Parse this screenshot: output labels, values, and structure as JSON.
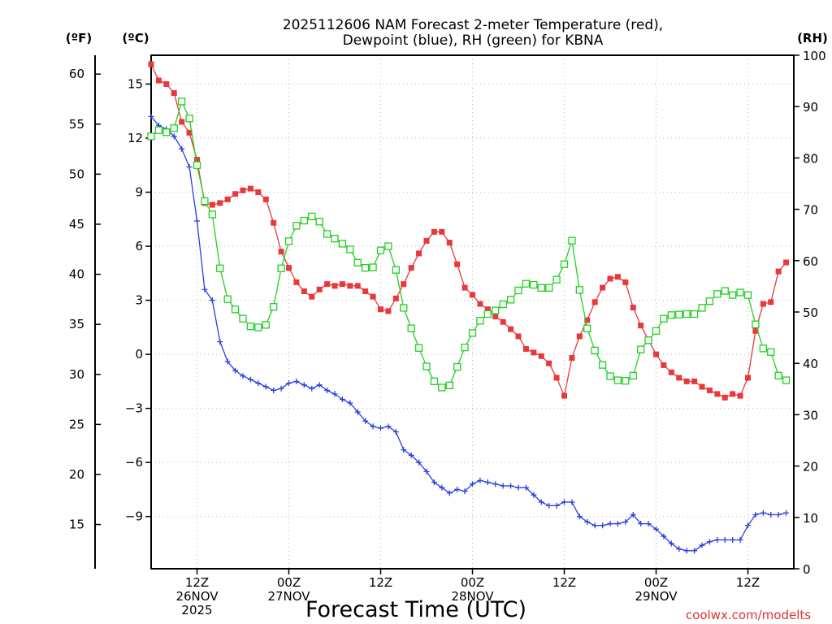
{
  "title": {
    "line1": "2025112606 NAM Forecast 2-meter Temperature (red),",
    "line2": "Dewpoint (blue), RH (green) for KBNA"
  },
  "units": {
    "fahrenheit": "(ºF)",
    "celsius": "(ºC)",
    "rh": "(RH)"
  },
  "x_axis": {
    "title": "Forecast Time (UTC)",
    "labels": [
      {
        "h": 6,
        "lines": [
          "12Z",
          "26NOV",
          "2025"
        ]
      },
      {
        "h": 18,
        "lines": [
          "00Z",
          "27NOV"
        ]
      },
      {
        "h": 30,
        "lines": [
          "12Z"
        ]
      },
      {
        "h": 42,
        "lines": [
          "00Z",
          "28NOV"
        ]
      },
      {
        "h": 54,
        "lines": [
          "12Z"
        ]
      },
      {
        "h": 66,
        "lines": [
          "00Z",
          "29NOV"
        ]
      },
      {
        "h": 78,
        "lines": [
          "12Z"
        ]
      }
    ]
  },
  "watermark": "coolwx.com/modelts",
  "colors": {
    "temperature": "#e8383a",
    "dewpoint": "#2a3fe0",
    "rh": "#20d020",
    "grid": "#b8b8b8"
  },
  "chart_data": {
    "type": "line",
    "x_unit": "hours from 2025-11-26 06Z",
    "x_range": [
      0,
      84
    ],
    "ylim_celsius": [
      -11.9,
      16.6
    ],
    "ylim_rh": [
      0,
      100
    ],
    "celsius_ticks": [
      "15",
      "12",
      "9",
      "6",
      "3",
      "0",
      "−3",
      "−6",
      "−9"
    ],
    "celsius_tick_values": [
      15,
      12,
      9,
      6,
      3,
      0,
      -3,
      -6,
      -9
    ],
    "fahrenheit_ticks": [
      "60",
      "55",
      "50",
      "45",
      "40",
      "35",
      "30",
      "25",
      "20",
      "15"
    ],
    "fahrenheit_tick_values": [
      60,
      55,
      50,
      45,
      40,
      35,
      30,
      25,
      20,
      15
    ],
    "rh_ticks": [
      "100",
      "90",
      "80",
      "70",
      "60",
      "50",
      "40",
      "30",
      "20",
      "10",
      "0"
    ],
    "rh_tick_values": [
      100,
      90,
      80,
      70,
      60,
      50,
      40,
      30,
      20,
      10,
      0
    ],
    "series": [
      {
        "name": "Temperature",
        "axis": "celsius",
        "marker": "filled-square",
        "points": [
          [
            0,
            16.1
          ],
          [
            1,
            15.2
          ],
          [
            2,
            15.0
          ],
          [
            3,
            14.5
          ],
          [
            4,
            12.9
          ],
          [
            5,
            12.3
          ],
          [
            6,
            10.8
          ],
          [
            7,
            8.4
          ],
          [
            8,
            8.3
          ],
          [
            9,
            8.4
          ],
          [
            10,
            8.6
          ],
          [
            11,
            8.9
          ],
          [
            12,
            9.1
          ],
          [
            13,
            9.2
          ],
          [
            14,
            9.0
          ],
          [
            15,
            8.6
          ],
          [
            16,
            7.3
          ],
          [
            17,
            5.7
          ],
          [
            18,
            4.8
          ],
          [
            19,
            4.0
          ],
          [
            20,
            3.5
          ],
          [
            21,
            3.2
          ],
          [
            22,
            3.6
          ],
          [
            23,
            3.9
          ],
          [
            24,
            3.8
          ],
          [
            25,
            3.9
          ],
          [
            26,
            3.8
          ],
          [
            27,
            3.8
          ],
          [
            28,
            3.5
          ],
          [
            29,
            3.2
          ],
          [
            30,
            2.5
          ],
          [
            31,
            2.4
          ],
          [
            32,
            3.1
          ],
          [
            33,
            3.9
          ],
          [
            34,
            4.8
          ],
          [
            35,
            5.6
          ],
          [
            36,
            6.3
          ],
          [
            37,
            6.8
          ],
          [
            38,
            6.8
          ],
          [
            39,
            6.2
          ],
          [
            40,
            5.0
          ],
          [
            41,
            3.7
          ],
          [
            42,
            3.3
          ],
          [
            43,
            2.8
          ],
          [
            44,
            2.5
          ],
          [
            45,
            2.1
          ],
          [
            46,
            1.8
          ],
          [
            47,
            1.4
          ],
          [
            48,
            1.0
          ],
          [
            49,
            0.3
          ],
          [
            50,
            0.1
          ],
          [
            51,
            -0.1
          ],
          [
            52,
            -0.5
          ],
          [
            53,
            -1.3
          ],
          [
            54,
            -2.3
          ],
          [
            55,
            -0.2
          ],
          [
            56,
            1.0
          ],
          [
            57,
            1.9
          ],
          [
            58,
            2.9
          ],
          [
            59,
            3.7
          ],
          [
            60,
            4.2
          ],
          [
            61,
            4.3
          ],
          [
            62,
            4.0
          ],
          [
            63,
            2.6
          ],
          [
            64,
            1.6
          ],
          [
            65,
            0.8
          ],
          [
            66,
            0.0
          ],
          [
            67,
            -0.6
          ],
          [
            68,
            -1.0
          ],
          [
            69,
            -1.3
          ],
          [
            70,
            -1.5
          ],
          [
            71,
            -1.5
          ],
          [
            72,
            -1.8
          ],
          [
            73,
            -2.0
          ],
          [
            74,
            -2.2
          ],
          [
            75,
            -2.4
          ],
          [
            76,
            -2.2
          ],
          [
            77,
            -2.3
          ],
          [
            78,
            -1.3
          ],
          [
            79,
            1.3
          ],
          [
            80,
            2.8
          ],
          [
            81,
            2.9
          ],
          [
            82,
            4.6
          ],
          [
            83,
            5.1
          ]
        ]
      },
      {
        "name": "Dewpoint",
        "axis": "celsius",
        "marker": "plus",
        "points": [
          [
            0,
            13.2
          ],
          [
            1,
            12.7
          ],
          [
            2,
            12.5
          ],
          [
            3,
            12.1
          ],
          [
            4,
            11.4
          ],
          [
            5,
            10.4
          ],
          [
            6,
            7.4
          ],
          [
            7,
            3.6
          ],
          [
            8,
            3.0
          ],
          [
            9,
            0.7
          ],
          [
            10,
            -0.4
          ],
          [
            11,
            -0.9
          ],
          [
            12,
            -1.2
          ],
          [
            13,
            -1.4
          ],
          [
            14,
            -1.6
          ],
          [
            15,
            -1.8
          ],
          [
            16,
            -2.0
          ],
          [
            17,
            -1.9
          ],
          [
            18,
            -1.6
          ],
          [
            19,
            -1.5
          ],
          [
            20,
            -1.7
          ],
          [
            21,
            -1.9
          ],
          [
            22,
            -1.7
          ],
          [
            23,
            -2.0
          ],
          [
            24,
            -2.2
          ],
          [
            25,
            -2.5
          ],
          [
            26,
            -2.7
          ],
          [
            27,
            -3.2
          ],
          [
            28,
            -3.7
          ],
          [
            29,
            -4.0
          ],
          [
            30,
            -4.1
          ],
          [
            31,
            -4.0
          ],
          [
            32,
            -4.3
          ],
          [
            33,
            -5.3
          ],
          [
            34,
            -5.6
          ],
          [
            35,
            -6.0
          ],
          [
            36,
            -6.5
          ],
          [
            37,
            -7.1
          ],
          [
            38,
            -7.4
          ],
          [
            39,
            -7.7
          ],
          [
            40,
            -7.5
          ],
          [
            41,
            -7.6
          ],
          [
            42,
            -7.2
          ],
          [
            43,
            -7.0
          ],
          [
            44,
            -7.1
          ],
          [
            45,
            -7.2
          ],
          [
            46,
            -7.3
          ],
          [
            47,
            -7.3
          ],
          [
            48,
            -7.4
          ],
          [
            49,
            -7.4
          ],
          [
            50,
            -7.8
          ],
          [
            51,
            -8.2
          ],
          [
            52,
            -8.4
          ],
          [
            53,
            -8.4
          ],
          [
            54,
            -8.2
          ],
          [
            55,
            -8.2
          ],
          [
            56,
            -9.0
          ],
          [
            57,
            -9.3
          ],
          [
            58,
            -9.5
          ],
          [
            59,
            -9.5
          ],
          [
            60,
            -9.4
          ],
          [
            61,
            -9.4
          ],
          [
            62,
            -9.3
          ],
          [
            63,
            -8.9
          ],
          [
            64,
            -9.4
          ],
          [
            65,
            -9.4
          ],
          [
            66,
            -9.7
          ],
          [
            67,
            -10.1
          ],
          [
            68,
            -10.5
          ],
          [
            69,
            -10.8
          ],
          [
            70,
            -10.9
          ],
          [
            71,
            -10.9
          ],
          [
            72,
            -10.6
          ],
          [
            73,
            -10.4
          ],
          [
            74,
            -10.3
          ],
          [
            75,
            -10.3
          ],
          [
            76,
            -10.3
          ],
          [
            77,
            -10.3
          ],
          [
            78,
            -9.5
          ],
          [
            79,
            -8.9
          ],
          [
            80,
            -8.8
          ],
          [
            81,
            -8.9
          ],
          [
            82,
            -8.9
          ],
          [
            83,
            -8.8
          ]
        ]
      },
      {
        "name": "RH",
        "axis": "rh",
        "marker": "open-square",
        "points": [
          [
            0,
            84.2
          ],
          [
            1,
            85.4
          ],
          [
            2,
            85.0
          ],
          [
            3,
            85.8
          ],
          [
            4,
            91.0
          ],
          [
            5,
            87.7
          ],
          [
            6,
            78.6
          ],
          [
            7,
            71.6
          ],
          [
            8,
            69.0
          ],
          [
            9,
            58.5
          ],
          [
            10,
            52.5
          ],
          [
            11,
            50.5
          ],
          [
            12,
            48.7
          ],
          [
            13,
            47.2
          ],
          [
            14,
            47.0
          ],
          [
            15,
            47.5
          ],
          [
            16,
            51.0
          ],
          [
            17,
            58.5
          ],
          [
            18,
            63.8
          ],
          [
            19,
            66.8
          ],
          [
            20,
            67.8
          ],
          [
            21,
            68.6
          ],
          [
            22,
            67.6
          ],
          [
            23,
            65.2
          ],
          [
            24,
            64.3
          ],
          [
            25,
            63.3
          ],
          [
            26,
            62.2
          ],
          [
            27,
            59.6
          ],
          [
            28,
            58.6
          ],
          [
            29,
            58.7
          ],
          [
            30,
            62.0
          ],
          [
            31,
            62.8
          ],
          [
            32,
            58.2
          ],
          [
            33,
            50.8
          ],
          [
            34,
            46.8
          ],
          [
            35,
            43.0
          ],
          [
            36,
            39.4
          ],
          [
            37,
            36.5
          ],
          [
            38,
            35.3
          ],
          [
            39,
            35.7
          ],
          [
            40,
            39.3
          ],
          [
            41,
            43.1
          ],
          [
            42,
            45.9
          ],
          [
            43,
            48.3
          ],
          [
            44,
            49.6
          ],
          [
            45,
            50.3
          ],
          [
            46,
            51.5
          ],
          [
            47,
            52.4
          ],
          [
            48,
            54.2
          ],
          [
            49,
            55.5
          ],
          [
            50,
            55.3
          ],
          [
            51,
            54.7
          ],
          [
            52,
            54.7
          ],
          [
            53,
            56.3
          ],
          [
            54,
            59.3
          ],
          [
            55,
            63.9
          ],
          [
            56,
            54.3
          ],
          [
            57,
            46.8
          ],
          [
            58,
            42.5
          ],
          [
            59,
            39.7
          ],
          [
            60,
            37.5
          ],
          [
            61,
            36.7
          ],
          [
            62,
            36.6
          ],
          [
            63,
            37.6
          ],
          [
            64,
            42.7
          ],
          [
            65,
            44.5
          ],
          [
            66,
            46.3
          ],
          [
            67,
            48.7
          ],
          [
            68,
            49.4
          ],
          [
            69,
            49.5
          ],
          [
            70,
            49.6
          ],
          [
            71,
            49.6
          ],
          [
            72,
            50.8
          ],
          [
            73,
            52.1
          ],
          [
            74,
            53.5
          ],
          [
            75,
            54.1
          ],
          [
            76,
            53.3
          ],
          [
            77,
            53.8
          ],
          [
            78,
            53.3
          ],
          [
            79,
            47.6
          ],
          [
            80,
            42.9
          ],
          [
            81,
            42.2
          ],
          [
            82,
            37.6
          ],
          [
            83,
            36.7
          ]
        ]
      }
    ]
  }
}
